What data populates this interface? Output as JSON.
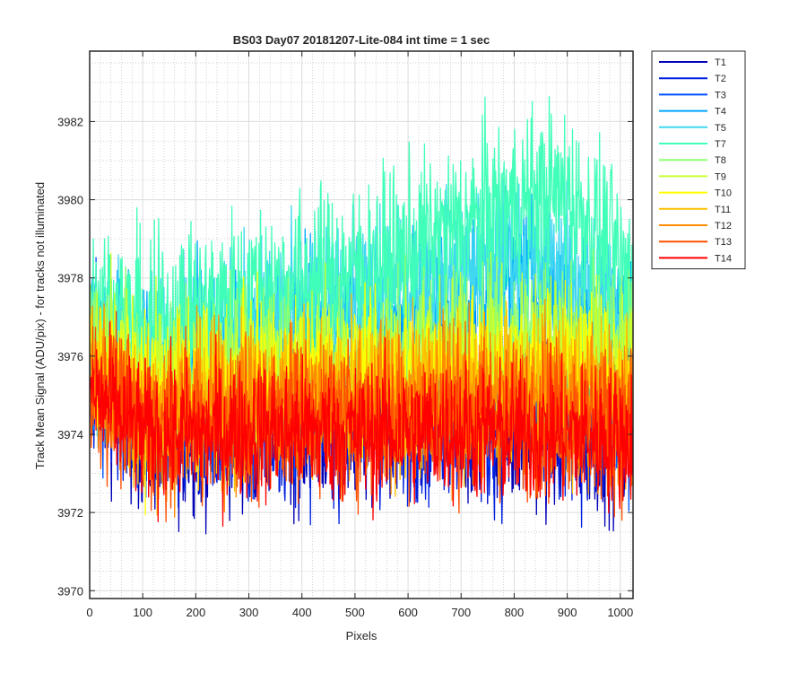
{
  "chart_data": {
    "type": "line",
    "title": "BS03 Day07 20181207-Lite-084 int time = 1 sec",
    "xlabel": "Pixels",
    "ylabel": "Track Mean Signal (ADU/pix) - for tracks not illuminated",
    "xlim": [
      0,
      1024
    ],
    "ylim": [
      3969.8,
      3983.8
    ],
    "xticks": [
      0,
      100,
      200,
      300,
      400,
      500,
      600,
      700,
      800,
      900,
      1000
    ],
    "yticks": [
      3970,
      3972,
      3974,
      3976,
      3978,
      3980,
      3982
    ],
    "grid": "major solid + minor dotted",
    "legend_position": "outside-top-right",
    "trend_x": [
      0,
      100,
      200,
      300,
      400,
      500,
      600,
      700,
      800,
      900,
      1024
    ],
    "series": [
      {
        "name": "T1",
        "color": "#0000b8",
        "noise": 1.0,
        "mean": [
          3975.5,
          3974.0,
          3974.0,
          3974.1,
          3974.2,
          3974.1,
          3974.2,
          3974.2,
          3974.0,
          3974.0,
          3974.0
        ]
      },
      {
        "name": "T2",
        "color": "#0020e0",
        "noise": 1.0,
        "mean": [
          3975.6,
          3974.1,
          3974.1,
          3974.2,
          3974.3,
          3974.2,
          3974.3,
          3974.3,
          3974.1,
          3974.1,
          3974.1
        ]
      },
      {
        "name": "T3",
        "color": "#0050ff",
        "noise": 1.0,
        "mean": [
          3975.9,
          3974.5,
          3974.6,
          3974.8,
          3975.0,
          3975.0,
          3975.2,
          3975.4,
          3975.3,
          3975.2,
          3975.0
        ]
      },
      {
        "name": "T4",
        "color": "#00a8ff",
        "noise": 1.0,
        "mean": [
          3976.5,
          3975.5,
          3976.0,
          3976.3,
          3976.6,
          3976.6,
          3977.0,
          3977.5,
          3978.0,
          3977.6,
          3976.5
        ]
      },
      {
        "name": "T5",
        "color": "#40d8f0",
        "noise": 1.0,
        "mean": [
          3976.8,
          3976.0,
          3976.5,
          3977.0,
          3977.2,
          3977.4,
          3977.8,
          3978.2,
          3978.5,
          3978.2,
          3977.2
        ]
      },
      {
        "name": "T7",
        "color": "#40ffb8",
        "noise": 1.15,
        "mean": [
          3977.5,
          3976.6,
          3977.1,
          3977.6,
          3977.9,
          3978.1,
          3978.6,
          3979.3,
          3979.9,
          3980.2,
          3977.8
        ]
      },
      {
        "name": "T8",
        "color": "#90ff70",
        "noise": 1.0,
        "mean": [
          3976.6,
          3975.4,
          3975.7,
          3975.9,
          3976.0,
          3976.0,
          3976.2,
          3976.4,
          3976.5,
          3976.5,
          3976.0
        ]
      },
      {
        "name": "T9",
        "color": "#c8ff30",
        "noise": 1.0,
        "mean": [
          3976.3,
          3975.2,
          3975.4,
          3975.6,
          3975.7,
          3975.7,
          3975.8,
          3976.0,
          3976.1,
          3976.1,
          3975.6
        ]
      },
      {
        "name": "T10",
        "color": "#ffff00",
        "noise": 1.0,
        "mean": [
          3976.0,
          3974.9,
          3975.1,
          3975.2,
          3975.3,
          3975.2,
          3975.3,
          3975.5,
          3975.5,
          3975.5,
          3975.1
        ]
      },
      {
        "name": "T11",
        "color": "#ffc000",
        "noise": 1.0,
        "mean": [
          3975.8,
          3974.6,
          3974.8,
          3974.9,
          3975.0,
          3974.9,
          3975.0,
          3975.1,
          3975.1,
          3975.1,
          3974.8
        ]
      },
      {
        "name": "T12",
        "color": "#ff8c00",
        "noise": 1.0,
        "mean": [
          3975.7,
          3974.4,
          3974.6,
          3974.7,
          3974.8,
          3974.7,
          3974.8,
          3974.9,
          3974.8,
          3974.8,
          3974.5
        ]
      },
      {
        "name": "T13",
        "color": "#ff5000",
        "noise": 1.0,
        "mean": [
          3975.4,
          3974.2,
          3974.3,
          3974.4,
          3974.5,
          3974.4,
          3974.5,
          3974.5,
          3974.4,
          3974.4,
          3974.2
        ]
      },
      {
        "name": "T14",
        "color": "#ff0000",
        "noise": 0.9,
        "mean": [
          3975.1,
          3974.0,
          3974.0,
          3974.1,
          3974.1,
          3974.0,
          3974.1,
          3974.1,
          3974.0,
          3974.0,
          3973.9
        ]
      }
    ]
  }
}
